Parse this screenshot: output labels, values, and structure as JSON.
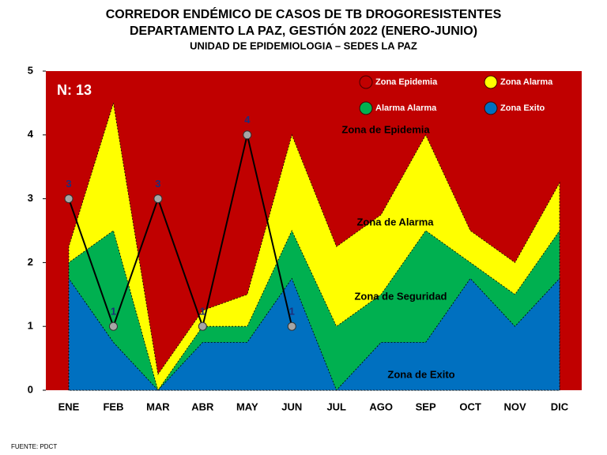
{
  "chart_data": {
    "type": "endemic-corridor",
    "title": [
      "CORREDOR ENDÉMICO DE CASOS DE TB DROGORESISTENTES",
      "DEPARTAMENTO  LA PAZ, GESTIÓN 2022 (ENERO-JUNIO)",
      "UNIDAD DE EPIDEMIOLOGIA – SEDES LA PAZ"
    ],
    "categories": [
      "ENE",
      "FEB",
      "MAR",
      "ABR",
      "MAY",
      "JUN",
      "JUL",
      "AGO",
      "SEP",
      "OCT",
      "NOV",
      "DIC"
    ],
    "background": {
      "name": "Zona Epidemia",
      "color": "#c00000"
    },
    "series": [
      {
        "name": "Zona  Alarma",
        "color": "#ffff00",
        "values": [
          2.25,
          4.5,
          0.25,
          1.25,
          1.5,
          4,
          2.25,
          2.75,
          4,
          2.5,
          2,
          3.25
        ]
      },
      {
        "name": "Alarma  Alarma",
        "color": "#00b050",
        "values": [
          2,
          2.5,
          0,
          1,
          1,
          2.5,
          1,
          1.5,
          2.5,
          2,
          1.5,
          2.5
        ]
      },
      {
        "name": "Zona Exito",
        "color": "#0070c0",
        "values": [
          1.75,
          0.75,
          0,
          0.75,
          0.75,
          1.75,
          0,
          0.75,
          0.75,
          1.75,
          1,
          1.75
        ]
      }
    ],
    "cases": {
      "color": "#000000",
      "marker_color": "#a6a6a6",
      "label_color": "#1f2d7a",
      "values": [
        3,
        1,
        3,
        1,
        4,
        1,
        null,
        null,
        null,
        null,
        null,
        null
      ]
    },
    "annotations": [
      "N: 13",
      "Zona de Epidemia",
      "Zona de Alarma",
      "Zona de Seguridad",
      "Zona de Exito"
    ],
    "ylim": [
      0,
      5
    ],
    "yticks": [
      0,
      1,
      2,
      3,
      4,
      5
    ],
    "source": "FUENTE:  PDCT"
  }
}
